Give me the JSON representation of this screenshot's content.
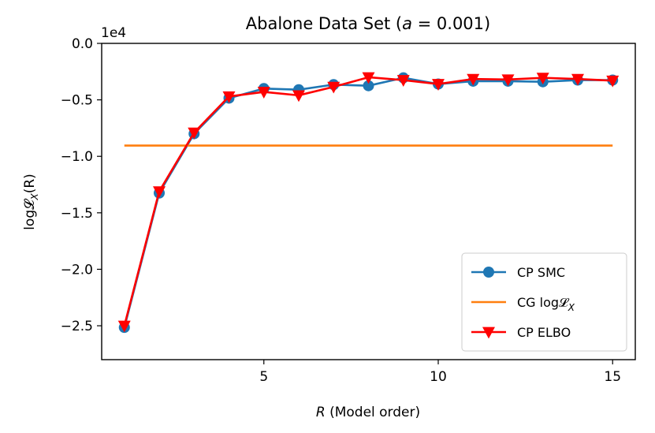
{
  "chart_data": {
    "type": "line",
    "title": "Abalone Data Set (",
    "title_a": "a",
    "title_rest": " = 0.001)",
    "xlabel_var": "R",
    "xlabel_rest": " (Model order)",
    "ylabel": "log𝓛",
    "ylabel_sub": "X",
    "ylabel_arg": "(R)",
    "offset_text": "1e4",
    "xlim": [
      0.35,
      15.65
    ],
    "ylim": [
      -2.8,
      0.0
    ],
    "x_ticks": [
      5,
      10,
      15
    ],
    "x_tick_labels": [
      "5",
      "10",
      "15"
    ],
    "y_ticks": [
      0.0,
      -0.5,
      -1.0,
      -1.5,
      -2.0,
      -2.5
    ],
    "y_tick_labels": [
      "0.0",
      "−0.5",
      "−1.0",
      "−1.5",
      "−2.0",
      "−2.5"
    ],
    "series": [
      {
        "name": "CP SMC",
        "legend_label": "CP SMC",
        "color": "#1f77b4",
        "marker": "circle",
        "x": [
          1,
          2,
          3,
          4,
          5,
          6,
          7,
          8,
          9,
          10,
          11,
          12,
          13,
          14,
          15
        ],
        "y": [
          -2.515,
          -1.325,
          -0.8,
          -0.485,
          -0.4,
          -0.41,
          -0.365,
          -0.375,
          -0.305,
          -0.36,
          -0.335,
          -0.335,
          -0.34,
          -0.325,
          -0.325
        ]
      },
      {
        "name": "CG logL_X",
        "legend_label": "CG log𝓛",
        "legend_sub": "X",
        "color": "#ff7f0e",
        "marker": "none",
        "x": [
          1,
          15
        ],
        "y": [
          -0.905,
          -0.905
        ]
      },
      {
        "name": "CP ELBO",
        "legend_label": "CP ELBO",
        "color": "#ff0000",
        "marker": "triangle-down",
        "x": [
          1,
          2,
          3,
          4,
          5,
          6,
          7,
          8,
          9,
          10,
          11,
          12,
          13,
          14,
          15
        ],
        "y": [
          -2.5,
          -1.31,
          -0.79,
          -0.47,
          -0.43,
          -0.46,
          -0.385,
          -0.3,
          -0.325,
          -0.36,
          -0.315,
          -0.32,
          -0.305,
          -0.315,
          -0.33
        ]
      }
    ],
    "legend_position": "lower-right"
  }
}
